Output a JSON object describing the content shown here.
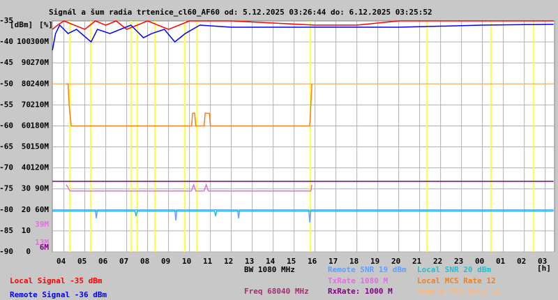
{
  "chart_data": {
    "type": "line",
    "title": "Signál a šum radia trtenice_cl60_AF60 od: 5.12.2025 03:26:44 do: 6.12.2025 03:25:52",
    "ylabel": "[dBm]",
    "y2label": "[%]",
    "xlabel": "[h]",
    "xlim": [
      3.4456,
      27.4456
    ],
    "ylim": [
      -90,
      -35
    ],
    "y2lim": [
      0,
      110
    ],
    "y3lim": [
      0,
      330
    ],
    "grid": true,
    "xticks": [
      {
        "value": 4,
        "label": "04"
      },
      {
        "value": 5,
        "label": "05"
      },
      {
        "value": 6,
        "label": "06"
      },
      {
        "value": 7,
        "label": "07"
      },
      {
        "value": 8,
        "label": "08"
      },
      {
        "value": 9,
        "label": "09"
      },
      10,
      11,
      12,
      13,
      14,
      15,
      16,
      17,
      18,
      19,
      20,
      21,
      22,
      23,
      {
        "value": 24,
        "label": "00"
      },
      {
        "value": 25,
        "label": "01"
      },
      {
        "value": 26,
        "label": "02"
      },
      {
        "value": 27,
        "label": "03"
      }
    ],
    "yticks": [
      -35,
      -40,
      -45,
      -50,
      -55,
      -60,
      -65,
      -70,
      -75,
      -80,
      -85,
      -90
    ],
    "y2ticks": [
      0,
      10,
      20,
      30,
      40,
      50,
      60,
      70,
      80,
      90,
      100
    ],
    "y3ticks": [
      {
        "value": 300,
        "label": "300M"
      },
      {
        "value": 270,
        "label": "270M"
      },
      {
        "value": 240,
        "label": "240M"
      },
      {
        "value": 210,
        "label": "210M"
      },
      {
        "value": 180,
        "label": "180M"
      },
      {
        "value": 150,
        "label": "150M"
      },
      {
        "value": 120,
        "label": "120M"
      },
      {
        "value": 90,
        "label": "90M"
      },
      {
        "value": 60,
        "label": "60M"
      },
      {
        "value": 39,
        "label": "39M",
        "color": "#e070e0"
      },
      {
        "value": 13,
        "label": "13M",
        "color": "#e070e0"
      },
      {
        "value": 6,
        "label": "6M",
        "color": "#800080"
      }
    ],
    "events": {
      "color": "#ffff40",
      "x": [
        4.28,
        5.28,
        7.21,
        7.51,
        8.35,
        9.78,
        10.35,
        15.78,
        21.35,
        24.41,
        26.45
      ]
    },
    "annotations": [
      {
        "text": "BW 1080 MHz",
        "color": "#000000"
      },
      {
        "text": "Freq 68040 MHz",
        "color": "#a03070"
      }
    ],
    "series": [
      {
        "name": "Local Signal -35 dBm",
        "color": "#ff0000",
        "x": [
          3.45,
          3.7,
          4.0,
          4.5,
          5.0,
          5.5,
          6.0,
          6.5,
          7.0,
          7.5,
          8.0,
          8.5,
          9.0,
          10,
          11,
          12,
          14,
          16,
          18,
          20,
          22,
          24,
          26,
          27.4
        ],
        "values": [
          -37,
          -36,
          -35,
          -36,
          -37,
          -35,
          -36,
          -35,
          -37,
          -36,
          -35,
          -36,
          -37,
          -35,
          -35,
          -35,
          -35.5,
          -36,
          -36,
          -35,
          -35,
          -35,
          -35,
          -35
        ]
      },
      {
        "name": "Remote Signal -36 dBm",
        "color": "#0000ff",
        "x": [
          3.45,
          3.6,
          3.8,
          4.2,
          4.6,
          5.3,
          5.6,
          6.2,
          7.2,
          7.8,
          8.2,
          8.8,
          9.3,
          9.8,
          10.5,
          12,
          16,
          20,
          24,
          27.4
        ],
        "values": [
          -42,
          -38,
          -36,
          -38,
          -37,
          -40,
          -37,
          -38,
          -36,
          -39,
          -38,
          -37,
          -40,
          -38,
          -36,
          -36.5,
          -36.5,
          -36.5,
          -36,
          -35.8
        ]
      },
      {
        "name": "Remote SNR 19 dBm",
        "color": "#60a0ff",
        "x": [
          3.45,
          5.5,
          5.55,
          5.6,
          9.3,
          9.35,
          9.4,
          12.3,
          12.35,
          12.4,
          15.7,
          15.75,
          15.8,
          27.4
        ],
        "values": [
          -80,
          -80,
          -82,
          -80,
          -80,
          -82.5,
          -80,
          -80,
          -82,
          -80,
          -80,
          -83,
          -80,
          -80
        ]
      },
      {
        "name": "Local SNR 20 dBm",
        "color": "#20c0d0",
        "x": [
          3.45,
          7.4,
          7.45,
          7.5,
          11.2,
          11.25,
          11.3,
          27.4
        ],
        "values": [
          -80.3,
          -80.3,
          -81.5,
          -80.3,
          -80.3,
          -81.5,
          -80.3,
          -80.3
        ]
      },
      {
        "name": "TxRate 1080 M",
        "color": "#e070e0",
        "x": [
          4.11,
          4.3,
          10.1,
          10.2,
          10.3,
          10.7,
          10.8,
          10.9,
          15.8,
          15.85
        ],
        "values": [
          -74,
          -75.5,
          -75.5,
          -74,
          -75.5,
          -75.5,
          -74,
          -75.5,
          -75.5,
          -74
        ]
      },
      {
        "name": "Local MCS Rate 12",
        "color": "#f08020",
        "x": [
          4.11,
          4.2,
          4.25,
          4.35,
          10.1,
          10.15,
          10.25,
          10.3,
          10.7,
          10.75,
          10.95,
          11,
          15.75,
          15.8,
          15.85
        ],
        "values": [
          -50,
          -50,
          -55,
          -60,
          -60,
          -57,
          -57,
          -60,
          -60,
          -57,
          -57,
          -60,
          -60,
          -55,
          -50
        ]
      },
      {
        "name": "RxRate: 1000 M",
        "color": "#800080",
        "x": [
          3.45,
          27.4
        ],
        "values": [
          -73.2,
          -73.2
        ]
      },
      {
        "name": "Remote MCS Rate 12",
        "color": "#f8b880",
        "x": [
          3.45,
          27.4
        ],
        "values": [
          -50,
          -50
        ]
      }
    ]
  }
}
